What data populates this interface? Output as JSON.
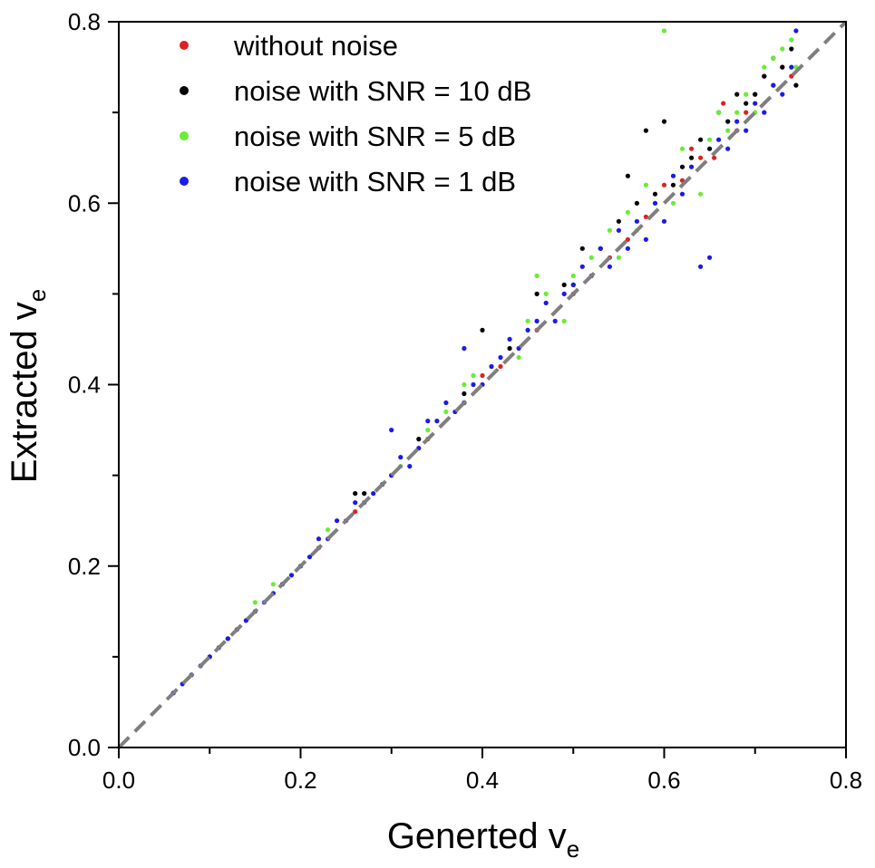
{
  "chart_data": {
    "type": "scatter",
    "title": "",
    "xlabel": "Generted v",
    "xlabel_subscript": "e",
    "ylabel": "Extracted v",
    "ylabel_subscript": "e",
    "xlim": [
      0.0,
      0.8
    ],
    "ylim": [
      0.0,
      0.8
    ],
    "x_ticks": [
      "0.0",
      "0.2",
      "0.4",
      "0.6",
      "0.8"
    ],
    "y_ticks": [
      "0.0",
      "0.2",
      "0.4",
      "0.6",
      "0.8"
    ],
    "grid": false,
    "legend_position": "top-left",
    "reference_line": {
      "style": "dashed",
      "color": "#7f7f7f",
      "from": [
        0.0,
        0.0
      ],
      "to": [
        0.8,
        0.8
      ]
    },
    "series": [
      {
        "name": "without noise",
        "color": "#e02020",
        "points": [
          [
            0.06,
            0.06
          ],
          [
            0.1,
            0.1
          ],
          [
            0.14,
            0.14
          ],
          [
            0.18,
            0.18
          ],
          [
            0.22,
            0.22
          ],
          [
            0.26,
            0.26
          ],
          [
            0.3,
            0.3
          ],
          [
            0.34,
            0.34
          ],
          [
            0.38,
            0.38
          ],
          [
            0.4,
            0.41
          ],
          [
            0.42,
            0.42
          ],
          [
            0.46,
            0.46
          ],
          [
            0.5,
            0.5
          ],
          [
            0.54,
            0.54
          ],
          [
            0.56,
            0.56
          ],
          [
            0.58,
            0.585
          ],
          [
            0.6,
            0.62
          ],
          [
            0.62,
            0.625
          ],
          [
            0.63,
            0.66
          ],
          [
            0.64,
            0.65
          ],
          [
            0.655,
            0.65
          ],
          [
            0.665,
            0.71
          ],
          [
            0.68,
            0.68
          ],
          [
            0.69,
            0.7
          ],
          [
            0.7,
            0.72
          ],
          [
            0.71,
            0.74
          ],
          [
            0.72,
            0.73
          ],
          [
            0.73,
            0.75
          ],
          [
            0.74,
            0.74
          ]
        ]
      },
      {
        "name": "noise with SNR = 10 dB",
        "color": "#000000",
        "points": [
          [
            0.12,
            0.12
          ],
          [
            0.2,
            0.2
          ],
          [
            0.26,
            0.28
          ],
          [
            0.27,
            0.28
          ],
          [
            0.33,
            0.34
          ],
          [
            0.38,
            0.39
          ],
          [
            0.4,
            0.46
          ],
          [
            0.43,
            0.44
          ],
          [
            0.46,
            0.5
          ],
          [
            0.49,
            0.51
          ],
          [
            0.5,
            0.51
          ],
          [
            0.51,
            0.55
          ],
          [
            0.53,
            0.55
          ],
          [
            0.55,
            0.58
          ],
          [
            0.56,
            0.63
          ],
          [
            0.57,
            0.6
          ],
          [
            0.58,
            0.68
          ],
          [
            0.59,
            0.61
          ],
          [
            0.6,
            0.69
          ],
          [
            0.61,
            0.62
          ],
          [
            0.62,
            0.64
          ],
          [
            0.63,
            0.65
          ],
          [
            0.64,
            0.67
          ],
          [
            0.65,
            0.66
          ],
          [
            0.66,
            0.7
          ],
          [
            0.67,
            0.69
          ],
          [
            0.68,
            0.72
          ],
          [
            0.69,
            0.71
          ],
          [
            0.7,
            0.72
          ],
          [
            0.71,
            0.74
          ],
          [
            0.72,
            0.76
          ],
          [
            0.73,
            0.75
          ],
          [
            0.74,
            0.77
          ],
          [
            0.745,
            0.73
          ]
        ]
      },
      {
        "name": "noise with SNR = 5 dB",
        "color": "#66ee33",
        "points": [
          [
            0.08,
            0.08
          ],
          [
            0.12,
            0.12
          ],
          [
            0.15,
            0.16
          ],
          [
            0.17,
            0.18
          ],
          [
            0.2,
            0.2
          ],
          [
            0.23,
            0.24
          ],
          [
            0.26,
            0.27
          ],
          [
            0.29,
            0.29
          ],
          [
            0.31,
            0.31
          ],
          [
            0.34,
            0.35
          ],
          [
            0.36,
            0.37
          ],
          [
            0.38,
            0.4
          ],
          [
            0.39,
            0.41
          ],
          [
            0.41,
            0.42
          ],
          [
            0.44,
            0.43
          ],
          [
            0.45,
            0.47
          ],
          [
            0.46,
            0.52
          ],
          [
            0.47,
            0.5
          ],
          [
            0.49,
            0.47
          ],
          [
            0.5,
            0.52
          ],
          [
            0.52,
            0.54
          ],
          [
            0.54,
            0.57
          ],
          [
            0.55,
            0.54
          ],
          [
            0.56,
            0.59
          ],
          [
            0.57,
            0.57
          ],
          [
            0.58,
            0.62
          ],
          [
            0.59,
            0.6
          ],
          [
            0.6,
            0.79
          ],
          [
            0.61,
            0.6
          ],
          [
            0.62,
            0.66
          ],
          [
            0.63,
            0.64
          ],
          [
            0.64,
            0.61
          ],
          [
            0.65,
            0.67
          ],
          [
            0.66,
            0.7
          ],
          [
            0.67,
            0.68
          ],
          [
            0.68,
            0.7
          ],
          [
            0.69,
            0.72
          ],
          [
            0.7,
            0.7
          ],
          [
            0.71,
            0.75
          ],
          [
            0.72,
            0.76
          ],
          [
            0.73,
            0.77
          ],
          [
            0.74,
            0.78
          ],
          [
            0.745,
            0.75
          ]
        ]
      },
      {
        "name": "noise with SNR = 1 dB",
        "color": "#1a1aee",
        "points": [
          [
            0.06,
            0.06
          ],
          [
            0.07,
            0.07
          ],
          [
            0.08,
            0.08
          ],
          [
            0.09,
            0.09
          ],
          [
            0.1,
            0.1
          ],
          [
            0.11,
            0.11
          ],
          [
            0.12,
            0.12
          ],
          [
            0.13,
            0.13
          ],
          [
            0.14,
            0.14
          ],
          [
            0.15,
            0.15
          ],
          [
            0.16,
            0.16
          ],
          [
            0.17,
            0.17
          ],
          [
            0.18,
            0.18
          ],
          [
            0.19,
            0.19
          ],
          [
            0.2,
            0.2
          ],
          [
            0.21,
            0.21
          ],
          [
            0.22,
            0.23
          ],
          [
            0.23,
            0.23
          ],
          [
            0.24,
            0.25
          ],
          [
            0.25,
            0.25
          ],
          [
            0.26,
            0.27
          ],
          [
            0.27,
            0.27
          ],
          [
            0.28,
            0.28
          ],
          [
            0.29,
            0.29
          ],
          [
            0.3,
            0.3
          ],
          [
            0.3,
            0.35
          ],
          [
            0.31,
            0.32
          ],
          [
            0.32,
            0.31
          ],
          [
            0.33,
            0.33
          ],
          [
            0.34,
            0.36
          ],
          [
            0.35,
            0.36
          ],
          [
            0.36,
            0.38
          ],
          [
            0.37,
            0.37
          ],
          [
            0.38,
            0.38
          ],
          [
            0.38,
            0.44
          ],
          [
            0.39,
            0.4
          ],
          [
            0.4,
            0.4
          ],
          [
            0.41,
            0.42
          ],
          [
            0.42,
            0.43
          ],
          [
            0.43,
            0.45
          ],
          [
            0.44,
            0.44
          ],
          [
            0.45,
            0.46
          ],
          [
            0.46,
            0.47
          ],
          [
            0.47,
            0.49
          ],
          [
            0.48,
            0.47
          ],
          [
            0.49,
            0.5
          ],
          [
            0.5,
            0.51
          ],
          [
            0.51,
            0.53
          ],
          [
            0.52,
            0.52
          ],
          [
            0.53,
            0.55
          ],
          [
            0.54,
            0.53
          ],
          [
            0.55,
            0.57
          ],
          [
            0.56,
            0.55
          ],
          [
            0.57,
            0.58
          ],
          [
            0.58,
            0.56
          ],
          [
            0.59,
            0.6
          ],
          [
            0.6,
            0.58
          ],
          [
            0.61,
            0.63
          ],
          [
            0.62,
            0.61
          ],
          [
            0.63,
            0.64
          ],
          [
            0.64,
            0.53
          ],
          [
            0.65,
            0.54
          ],
          [
            0.66,
            0.67
          ],
          [
            0.67,
            0.66
          ],
          [
            0.68,
            0.69
          ],
          [
            0.69,
            0.68
          ],
          [
            0.7,
            0.71
          ],
          [
            0.71,
            0.7
          ],
          [
            0.72,
            0.73
          ],
          [
            0.73,
            0.72
          ],
          [
            0.74,
            0.75
          ],
          [
            0.745,
            0.79
          ]
        ]
      }
    ]
  }
}
